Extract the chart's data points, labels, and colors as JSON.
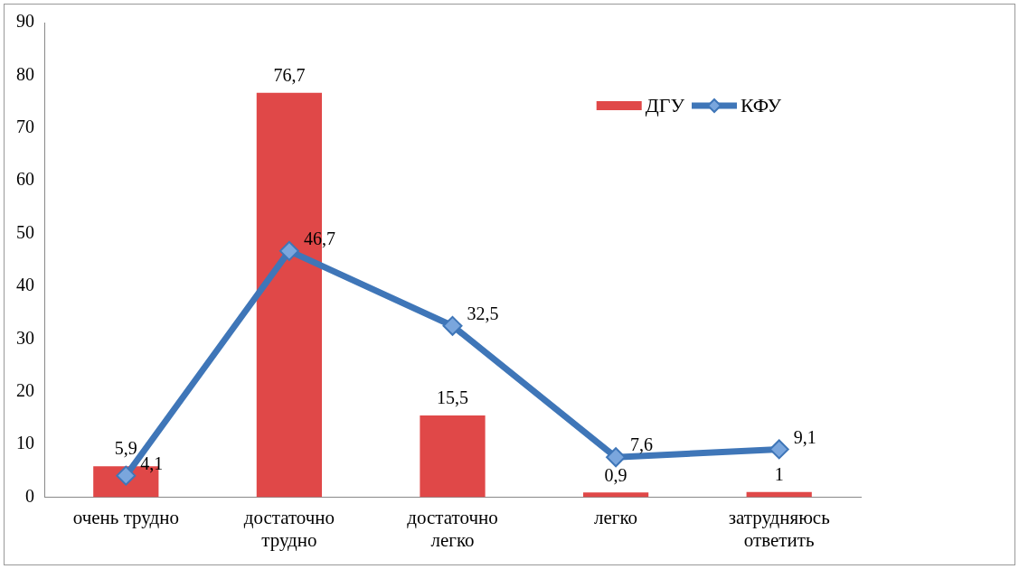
{
  "chart_data": {
    "type": "bar",
    "categories": [
      "очень трудно",
      "достаточно трудно",
      "достаточно легко",
      "легко",
      "затрудняюсь ответить"
    ],
    "series": [
      {
        "name": "ДГУ",
        "color": "#e04848",
        "values": [
          5.9,
          76.7,
          15.5,
          0.9,
          1
        ],
        "value_labels": [
          "5,9",
          "76,7",
          "15,5",
          "0,9",
          "1"
        ]
      },
      {
        "name": "КФУ",
        "type": "line",
        "color": "#3f76b8",
        "values": [
          4.1,
          46.7,
          32.5,
          7.6,
          9.1
        ],
        "value_labels": [
          "4,1",
          "46,7",
          "32,5",
          "7,6",
          "9,1"
        ]
      }
    ],
    "ylim": [
      0,
      90
    ],
    "yticks": [
      0,
      10,
      20,
      30,
      40,
      50,
      60,
      70,
      80,
      90
    ],
    "grid": false,
    "legend": "top right",
    "marker": "diamond",
    "line_style": "solid"
  }
}
